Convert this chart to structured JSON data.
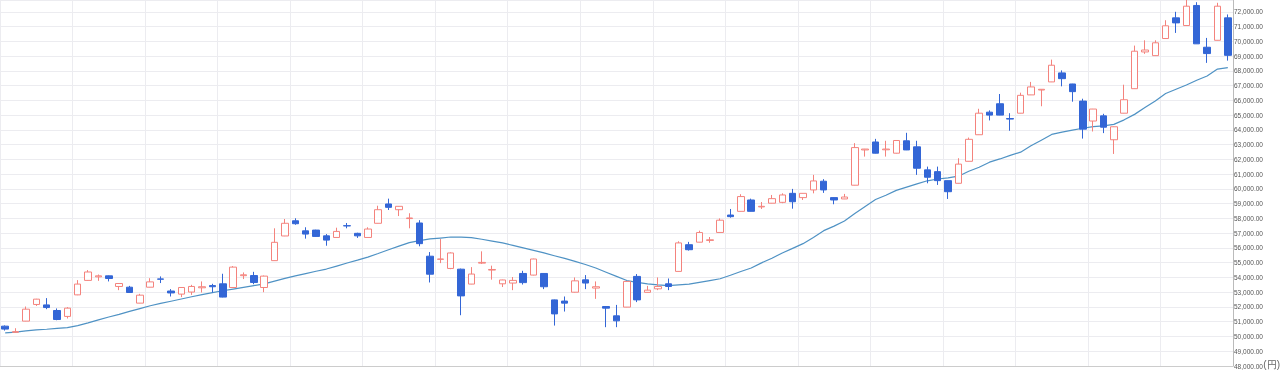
{
  "chart_data": {
    "type": "candlestick",
    "ylabel": "(円)",
    "categories": [
      null,
      null,
      null,
      null,
      null,
      null,
      null,
      null,
      null,
      null,
      null,
      null,
      null,
      null,
      null,
      null,
      null,
      null,
      null,
      null,
      null,
      null,
      null,
      null,
      null,
      null,
      null,
      null,
      null,
      null,
      null,
      null,
      null,
      null,
      null,
      null,
      null,
      null,
      null,
      null,
      null,
      null,
      null,
      null,
      null,
      null,
      null,
      null,
      null,
      null,
      null,
      null,
      null,
      null,
      null,
      null,
      null,
      null,
      null,
      null,
      null,
      null,
      null,
      null,
      null,
      null,
      null,
      null,
      null,
      null,
      null,
      null,
      null,
      null,
      null,
      null,
      null,
      null,
      null,
      null,
      null,
      null,
      null,
      null,
      null,
      null,
      null,
      null,
      null,
      null,
      null,
      null,
      null,
      null,
      null,
      null,
      null,
      null,
      null,
      null,
      null,
      null,
      null,
      null,
      null,
      null,
      null,
      null,
      null,
      null,
      null,
      null,
      null,
      null,
      null,
      null,
      null,
      null,
      null
    ],
    "series": [
      {
        "ohlc": [
          [
            50700,
            50750,
            50400,
            50500
          ],
          [
            50280,
            50560,
            50250,
            50330
          ],
          [
            51040,
            52030,
            51030,
            51850
          ],
          [
            52170,
            52550,
            52070,
            52530
          ],
          [
            52140,
            52600,
            51850,
            51960
          ],
          [
            51760,
            51900,
            51100,
            51150
          ],
          [
            51360,
            51990,
            51220,
            51920
          ],
          [
            52820,
            53820,
            52800,
            53550
          ],
          [
            53800,
            54500,
            53780,
            54370
          ],
          [
            54040,
            54200,
            53770,
            54110
          ],
          [
            54110,
            54130,
            53730,
            53930
          ],
          [
            53390,
            53600,
            53140,
            53590
          ],
          [
            53340,
            53430,
            52950,
            52980
          ],
          [
            52260,
            52890,
            52250,
            52800
          ],
          [
            53340,
            53950,
            53330,
            53700
          ],
          [
            53900,
            54070,
            53620,
            53880
          ],
          [
            53080,
            53210,
            52710,
            52950
          ],
          [
            52870,
            53330,
            52670,
            53320
          ],
          [
            53010,
            53500,
            52820,
            53390
          ],
          [
            53300,
            53730,
            52980,
            53370
          ],
          [
            53450,
            53570,
            52980,
            53370
          ],
          [
            53570,
            54250,
            52650,
            52670
          ],
          [
            53320,
            54770,
            53300,
            54700
          ],
          [
            54120,
            54340,
            53890,
            54180
          ],
          [
            54130,
            54380,
            53540,
            53660
          ],
          [
            53320,
            54130,
            53000,
            54090
          ],
          [
            55140,
            57330,
            55130,
            56380
          ],
          [
            56810,
            57960,
            56800,
            57670
          ],
          [
            57840,
            58010,
            57570,
            57640
          ],
          [
            57160,
            57400,
            56630,
            56940
          ],
          [
            57210,
            57230,
            56760,
            56780
          ],
          [
            56820,
            56940,
            56150,
            56530
          ],
          [
            56710,
            57370,
            56700,
            57120
          ],
          [
            57510,
            57690,
            57330,
            57490
          ],
          [
            56990,
            57030,
            56680,
            56820
          ],
          [
            56710,
            57400,
            56700,
            57280
          ],
          [
            57670,
            58860,
            57660,
            58590
          ],
          [
            58980,
            59340,
            58570,
            58750
          ],
          [
            58590,
            58830,
            58160,
            58820
          ],
          [
            57990,
            58350,
            57330,
            58030
          ],
          [
            57690,
            57880,
            56110,
            56290
          ],
          [
            55440,
            55720,
            53660,
            54220
          ],
          [
            55230,
            56600,
            54970,
            55250
          ],
          [
            54610,
            55700,
            54560,
            55660
          ],
          [
            54560,
            54600,
            51440,
            52750
          ],
          [
            53550,
            54700,
            53540,
            54230
          ],
          [
            54970,
            55770,
            54910,
            55020
          ],
          [
            54500,
            54800,
            53850,
            54540
          ],
          [
            53570,
            53850,
            53350,
            53830
          ],
          [
            53620,
            54030,
            53140,
            53800
          ],
          [
            54270,
            54450,
            53520,
            53650
          ],
          [
            54160,
            55270,
            54140,
            55250
          ],
          [
            54270,
            54280,
            53210,
            53370
          ],
          [
            52480,
            52500,
            50740,
            51530
          ],
          [
            52400,
            52710,
            51690,
            52260
          ],
          [
            53000,
            54000,
            52980,
            53770
          ],
          [
            53840,
            54160,
            53210,
            53620
          ],
          [
            53280,
            53730,
            52550,
            53370
          ],
          [
            52030,
            52040,
            50630,
            51920
          ],
          [
            51400,
            52140,
            50630,
            51060
          ],
          [
            51990,
            53740,
            51980,
            53730
          ],
          [
            54070,
            54230,
            52330,
            52480
          ],
          [
            52990,
            53430,
            52980,
            53140
          ],
          [
            53230,
            54000,
            53140,
            53390
          ],
          [
            53570,
            53930,
            53140,
            53390
          ],
          [
            54410,
            56450,
            54400,
            56340
          ],
          [
            56220,
            56410,
            55820,
            55880
          ],
          [
            56390,
            57170,
            56380,
            57040
          ],
          [
            56510,
            56740,
            56350,
            56550
          ],
          [
            57050,
            58000,
            57040,
            57880
          ],
          [
            58230,
            58640,
            58050,
            58120
          ],
          [
            58480,
            59640,
            58470,
            59480
          ],
          [
            59250,
            59340,
            58470,
            58480
          ],
          [
            58780,
            59110,
            58640,
            58820
          ],
          [
            59030,
            59590,
            59020,
            59340
          ],
          [
            59090,
            59700,
            59030,
            59590
          ],
          [
            59700,
            60000,
            58660,
            59130
          ],
          [
            59410,
            59710,
            59250,
            59700
          ],
          [
            59930,
            60950,
            59700,
            60540
          ],
          [
            60520,
            60660,
            59730,
            59930
          ],
          [
            59410,
            59420,
            58960,
            59250
          ],
          [
            59320,
            59660,
            59310,
            59450
          ],
          [
            60250,
            63100,
            60240,
            62800
          ],
          [
            62640,
            62710,
            62190,
            62700
          ],
          [
            63180,
            63390,
            62400,
            62420
          ],
          [
            62650,
            63260,
            62190,
            62700
          ],
          [
            62420,
            63300,
            62400,
            63280
          ],
          [
            63260,
            63800,
            62630,
            62640
          ],
          [
            62850,
            63260,
            60950,
            61400
          ],
          [
            61290,
            61510,
            60380,
            60790
          ],
          [
            61170,
            61510,
            60270,
            60560
          ],
          [
            60560,
            60570,
            59320,
            59810
          ],
          [
            60380,
            62080,
            60370,
            61680
          ],
          [
            61870,
            63480,
            61860,
            63360
          ],
          [
            63670,
            65430,
            63660,
            65130
          ],
          [
            65200,
            65320,
            64640,
            65000
          ],
          [
            65770,
            66430,
            64990,
            65000
          ],
          [
            64770,
            65130,
            63940,
            64730
          ],
          [
            65130,
            66520,
            65120,
            66340
          ],
          [
            66370,
            67250,
            66360,
            66910
          ],
          [
            66700,
            66760,
            65600,
            66750
          ],
          [
            67250,
            68760,
            67240,
            68380
          ],
          [
            67860,
            68030,
            66950,
            67470
          ],
          [
            67110,
            67120,
            65910,
            66590
          ],
          [
            65950,
            66110,
            63410,
            64050
          ],
          [
            64600,
            65420,
            63890,
            65410
          ],
          [
            64950,
            65090,
            63780,
            64180
          ],
          [
            63330,
            64230,
            62370,
            64210
          ],
          [
            65130,
            67060,
            65120,
            66040
          ],
          [
            66790,
            69710,
            66780,
            69330
          ],
          [
            69280,
            70070,
            69150,
            69410
          ],
          [
            69030,
            70070,
            69020,
            69900
          ],
          [
            70190,
            71430,
            70180,
            71050
          ],
          [
            71590,
            72000,
            70570,
            71250
          ],
          [
            71070,
            72800,
            71060,
            72380
          ],
          [
            72430,
            72650,
            69820,
            69830
          ],
          [
            69600,
            70230,
            68540,
            69170
          ],
          [
            70070,
            72610,
            70060,
            72380
          ],
          [
            71590,
            71820,
            68690,
            69050
          ]
        ],
        "colors": [
          "#3366d6",
          "#f4837d",
          "#f4837d",
          "#f4837d",
          "#3366d6",
          "#3366d6",
          "#f4837d",
          "#f4837d",
          "#f4837d",
          "#f4837d",
          "#3366d6",
          "#f4837d",
          "#3366d6",
          "#f4837d",
          "#f4837d",
          "#3366d6",
          "#3366d6",
          "#f4837d",
          "#f4837d",
          "#f4837d",
          "#3366d6",
          "#3366d6",
          "#f4837d",
          "#f4837d",
          "#3366d6",
          "#f4837d",
          "#f4837d",
          "#f4837d",
          "#3366d6",
          "#3366d6",
          "#3366d6",
          "#3366d6",
          "#f4837d",
          "#3366d6",
          "#3366d6",
          "#f4837d",
          "#f4837d",
          "#3366d6",
          "#f4837d",
          "#f4837d",
          "#3366d6",
          "#3366d6",
          "#f4837d",
          "#f4837d",
          "#3366d6",
          "#f4837d",
          "#f4837d",
          "#f4837d",
          "#f4837d",
          "#f4837d",
          "#3366d6",
          "#f4837d",
          "#3366d6",
          "#3366d6",
          "#3366d6",
          "#f4837d",
          "#3366d6",
          "#f4837d",
          "#3366d6",
          "#3366d6",
          "#f4837d",
          "#3366d6",
          "#f4837d",
          "#f4837d",
          "#3366d6",
          "#f4837d",
          "#3366d6",
          "#f4837d",
          "#f4837d",
          "#f4837d",
          "#3366d6",
          "#f4837d",
          "#3366d6",
          "#f4837d",
          "#f4837d",
          "#f4837d",
          "#3366d6",
          "#f4837d",
          "#f4837d",
          "#3366d6",
          "#3366d6",
          "#f4837d",
          "#f4837d",
          "#f4837d",
          "#3366d6",
          "#f4837d",
          "#f4837d",
          "#3366d6",
          "#3366d6",
          "#3366d6",
          "#3366d6",
          "#3366d6",
          "#f4837d",
          "#f4837d",
          "#f4837d",
          "#3366d6",
          "#3366d6",
          "#3366d6",
          "#f4837d",
          "#f4837d",
          "#f4837d",
          "#f4837d",
          "#3366d6",
          "#3366d6",
          "#3366d6",
          "#f4837d",
          "#3366d6",
          "#f4837d",
          "#f4837d",
          "#f4837d",
          "#f4837d",
          "#f4837d",
          "#f4837d",
          "#3366d6",
          "#f4837d",
          "#3366d6",
          "#3366d6",
          "#f4837d",
          "#3366d6"
        ]
      },
      {
        "type": "line",
        "color": "#4f92c4",
        "values": [
          50250,
          50300,
          50380,
          50450,
          50490,
          50550,
          50600,
          50740,
          50920,
          51130,
          51320,
          51500,
          51700,
          51890,
          52080,
          52240,
          52390,
          52540,
          52690,
          52840,
          52970,
          53100,
          53210,
          53330,
          53450,
          53570,
          53750,
          53940,
          54110,
          54260,
          54420,
          54570,
          54770,
          54980,
          55170,
          55380,
          55620,
          55880,
          56120,
          56360,
          56490,
          56610,
          56670,
          56740,
          56730,
          56700,
          56590,
          56460,
          56340,
          56170,
          56000,
          55830,
          55660,
          55470,
          55290,
          55090,
          54880,
          54640,
          54350,
          54070,
          53790,
          53670,
          53570,
          53500,
          53450,
          53500,
          53550,
          53670,
          53790,
          53910,
          54150,
          54400,
          54640,
          54990,
          55300,
          55660,
          55970,
          56290,
          56710,
          57170,
          57480,
          57820,
          58330,
          58800,
          59280,
          59570,
          59900,
          60120,
          60340,
          60550,
          60670,
          60750,
          60860,
          61200,
          61470,
          61810,
          62030,
          62270,
          62490,
          62920,
          63300,
          63690,
          63850,
          63980,
          64110,
          64220,
          64270,
          64370,
          64680,
          65050,
          65510,
          65960,
          66460,
          66750,
          67040,
          67360,
          67650,
          68120,
          68220
        ]
      }
    ],
    "marker": "none",
    "ylim": [
      48000,
      72800
    ],
    "yticks": [
      {
        "value": 48000,
        "label": "48,000.00"
      },
      {
        "value": 49000,
        "label": "49,000.00"
      },
      {
        "value": 50000,
        "label": "50,000.00"
      },
      {
        "value": 51000,
        "label": "51,000.00"
      },
      {
        "value": 52000,
        "label": "52,000.00"
      },
      {
        "value": 53000,
        "label": "53,000.00"
      },
      {
        "value": 54000,
        "label": "54,000.00"
      },
      {
        "value": 55000,
        "label": "55,000.00"
      },
      {
        "value": 56000,
        "label": "56,000.00"
      },
      {
        "value": 57000,
        "label": "57,000.00"
      },
      {
        "value": 58000,
        "label": "58,000.00"
      },
      {
        "value": 59000,
        "label": "59,000.00"
      },
      {
        "value": 60000,
        "label": "60,000.00"
      },
      {
        "value": 61000,
        "label": "61,000.00"
      },
      {
        "value": 62000,
        "label": "62,000.00"
      },
      {
        "value": 63000,
        "label": "63,000.00"
      },
      {
        "value": 64000,
        "label": "64,000.00"
      },
      {
        "value": 65000,
        "label": "65,000.00"
      },
      {
        "value": 66000,
        "label": "66,000.00"
      },
      {
        "value": 67000,
        "label": "67,000.00"
      },
      {
        "value": 68000,
        "label": "68,000.00"
      },
      {
        "value": 69000,
        "label": "69,000.00"
      },
      {
        "value": 70000,
        "label": "70,000.00"
      },
      {
        "value": 71000,
        "label": "71,000.00"
      },
      {
        "value": 72000,
        "label": "72,000.00"
      }
    ],
    "grid": true,
    "tick_labels": "y"
  }
}
